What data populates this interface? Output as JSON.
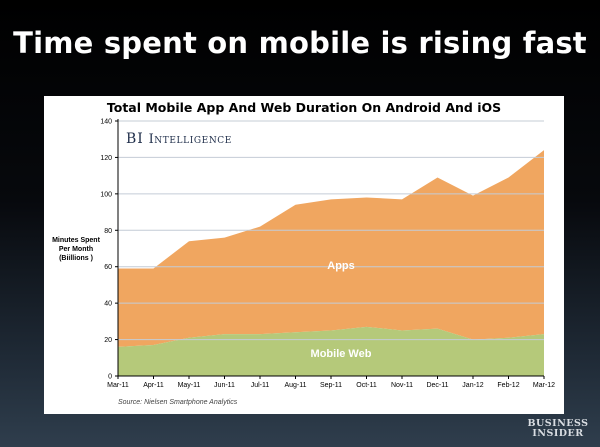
{
  "slide": {
    "title": "Time spent on mobile is rising fast"
  },
  "brand": {
    "prefix": "BI",
    "name": "Intelligence",
    "logo_line1": "BUSINESS",
    "logo_line2": "INSIDER"
  },
  "source": "Source: Nielsen Smartphone Analytics",
  "colors": {
    "apps": "#f0a660",
    "mobile_web": "#b5c97a",
    "gridline": "#c4ccd6"
  },
  "chart_data": {
    "type": "area",
    "stacked": true,
    "title": "Total Mobile App And Web Duration On Android And iOS",
    "ylabel": "Minutes Spent\nPer Month\n(Biillions )",
    "xlabel": "",
    "ylim": [
      0,
      140
    ],
    "yticks": [
      0,
      20,
      40,
      60,
      80,
      100,
      120,
      140
    ],
    "grid": true,
    "categories": [
      "Mar-11",
      "Apr-11",
      "May-11",
      "Jun-11",
      "Jul-11",
      "Aug-11",
      "Sep-11",
      "Oct-11",
      "Nov-11",
      "Dec-11",
      "Jan-12",
      "Feb-12",
      "Mar-12"
    ],
    "series": [
      {
        "name": "Mobile Web",
        "values": [
          16,
          17,
          21,
          23,
          23,
          24,
          25,
          27,
          25,
          26,
          20,
          21,
          23
        ]
      },
      {
        "name": "Apps",
        "values": [
          43,
          42,
          53,
          53,
          59,
          70,
          72,
          71,
          72,
          83,
          79,
          88,
          101
        ]
      }
    ]
  }
}
